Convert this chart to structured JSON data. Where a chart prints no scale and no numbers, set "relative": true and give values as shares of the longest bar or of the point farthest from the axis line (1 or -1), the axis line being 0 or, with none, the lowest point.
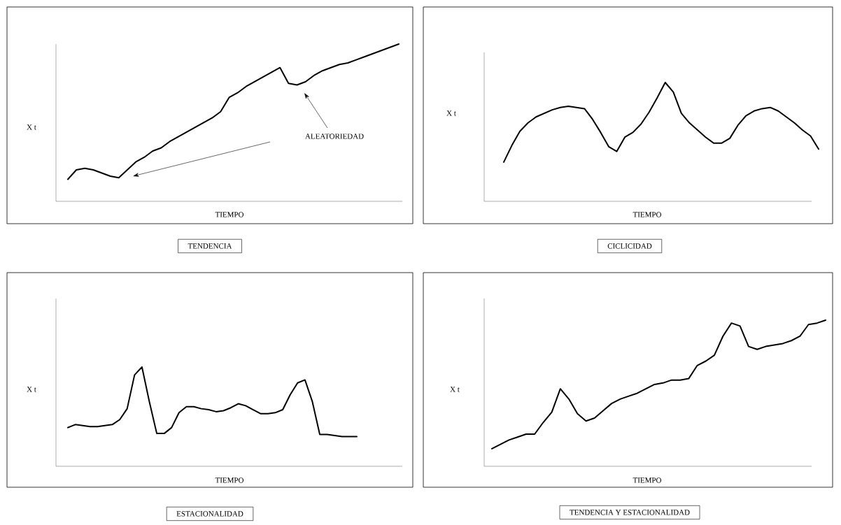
{
  "chart_data": [
    {
      "type": "line",
      "relative": true,
      "marker": "none",
      "color": "#000000",
      "title": "TENDENCIA",
      "xlabel": "TIEMPO",
      "ylabel": "X t",
      "annotations": [
        "ALEATORIEDAD"
      ],
      "categories": [
        null,
        null,
        null,
        null,
        null,
        null,
        null,
        null,
        null,
        null,
        null,
        null,
        null,
        null,
        null,
        null,
        null,
        null,
        null,
        null,
        null,
        null,
        null,
        null,
        null,
        null,
        null,
        null,
        null,
        null,
        null,
        null,
        null,
        null,
        null,
        null,
        null,
        null,
        null,
        null
      ],
      "values": [
        0.14,
        0.2,
        0.21,
        0.2,
        0.18,
        0.16,
        0.15,
        0.2,
        0.25,
        0.28,
        0.32,
        0.34,
        0.38,
        0.41,
        0.44,
        0.47,
        0.5,
        0.53,
        0.57,
        0.66,
        0.69,
        0.73,
        0.76,
        0.79,
        0.82,
        0.85,
        0.75,
        0.74,
        0.76,
        0.8,
        0.83,
        0.85,
        0.87,
        0.88,
        0.9,
        0.92,
        0.94,
        0.96,
        0.98,
        1
      ]
    },
    {
      "type": "line",
      "relative": true,
      "marker": "none",
      "color": "#000000",
      "title": "CICLICIDAD",
      "xlabel": "TIEMPO",
      "ylabel": "X t",
      "categories": [
        null,
        null,
        null,
        null,
        null,
        null,
        null,
        null,
        null,
        null,
        null,
        null,
        null,
        null,
        null,
        null,
        null,
        null,
        null,
        null,
        null,
        null,
        null,
        null,
        null,
        null,
        null,
        null,
        null,
        null,
        null,
        null,
        null,
        null,
        null,
        null,
        null,
        null,
        null,
        null
      ],
      "values": [
        0.33,
        0.47,
        0.59,
        0.66,
        0.71,
        0.74,
        0.77,
        0.79,
        0.8,
        0.79,
        0.78,
        0.69,
        0.58,
        0.46,
        0.42,
        0.54,
        0.58,
        0.65,
        0.75,
        0.87,
        1,
        0.92,
        0.74,
        0.66,
        0.6,
        0.54,
        0.49,
        0.49,
        0.53,
        0.64,
        0.72,
        0.76,
        0.78,
        0.79,
        0.76,
        0.71,
        0.66,
        0.6,
        0.55,
        0.44
      ]
    },
    {
      "type": "line",
      "relative": true,
      "marker": "none",
      "color": "#000000",
      "title": "ESTACIONALIDAD",
      "xlabel": "TIEMPO",
      "ylabel": "X t",
      "categories": [
        null,
        null,
        null,
        null,
        null,
        null,
        null,
        null,
        null,
        null,
        null,
        null,
        null,
        null,
        null,
        null,
        null,
        null,
        null,
        null,
        null,
        null,
        null,
        null,
        null,
        null,
        null,
        null,
        null,
        null,
        null,
        null,
        null,
        null,
        null,
        null,
        null,
        null,
        null,
        null
      ],
      "values": [
        0.39,
        0.42,
        0.41,
        0.4,
        0.4,
        0.41,
        0.42,
        0.47,
        0.58,
        0.92,
        1,
        0.65,
        0.33,
        0.33,
        0.39,
        0.54,
        0.6,
        0.6,
        0.58,
        0.57,
        0.55,
        0.56,
        0.59,
        0.63,
        0.61,
        0.57,
        0.53,
        0.53,
        0.54,
        0.57,
        0.72,
        0.84,
        0.87,
        0.65,
        0.32,
        0.32,
        0.31,
        0.3,
        0.3,
        0.3
      ]
    },
    {
      "type": "line",
      "relative": true,
      "marker": "none",
      "color": "#000000",
      "title": "TENDENCIA Y ESTACIONALIDAD",
      "xlabel": "TIEMPO",
      "ylabel": "X t",
      "categories": [
        null,
        null,
        null,
        null,
        null,
        null,
        null,
        null,
        null,
        null,
        null,
        null,
        null,
        null,
        null,
        null,
        null,
        null,
        null,
        null,
        null,
        null,
        null,
        null,
        null,
        null,
        null,
        null,
        null,
        null,
        null,
        null,
        null,
        null,
        null,
        null,
        null,
        null,
        null,
        null
      ],
      "values": [
        0.12,
        0.15,
        0.18,
        0.2,
        0.22,
        0.22,
        0.3,
        0.37,
        0.53,
        0.46,
        0.36,
        0.31,
        0.33,
        0.38,
        0.43,
        0.46,
        0.48,
        0.5,
        0.53,
        0.56,
        0.57,
        0.59,
        0.59,
        0.6,
        0.69,
        0.72,
        0.76,
        0.89,
        0.98,
        0.96,
        0.82,
        0.8,
        0.82,
        0.83,
        0.84,
        0.86,
        0.89,
        0.97,
        0.98,
        1
      ]
    }
  ]
}
